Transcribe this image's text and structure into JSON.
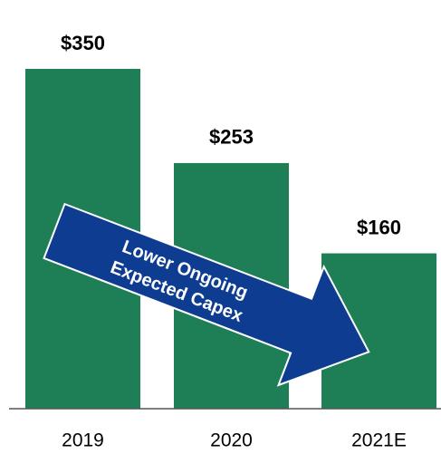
{
  "chart_data": {
    "type": "bar",
    "categories": [
      "2019",
      "2020",
      "2021E"
    ],
    "values": [
      350,
      253,
      160
    ],
    "value_labels": [
      "$350",
      "$253",
      "$160"
    ],
    "color": "#1e7f56",
    "annotation": {
      "lines": [
        "Lower Ongoing",
        "Expected Capex"
      ],
      "color": "#0d3c91"
    }
  }
}
